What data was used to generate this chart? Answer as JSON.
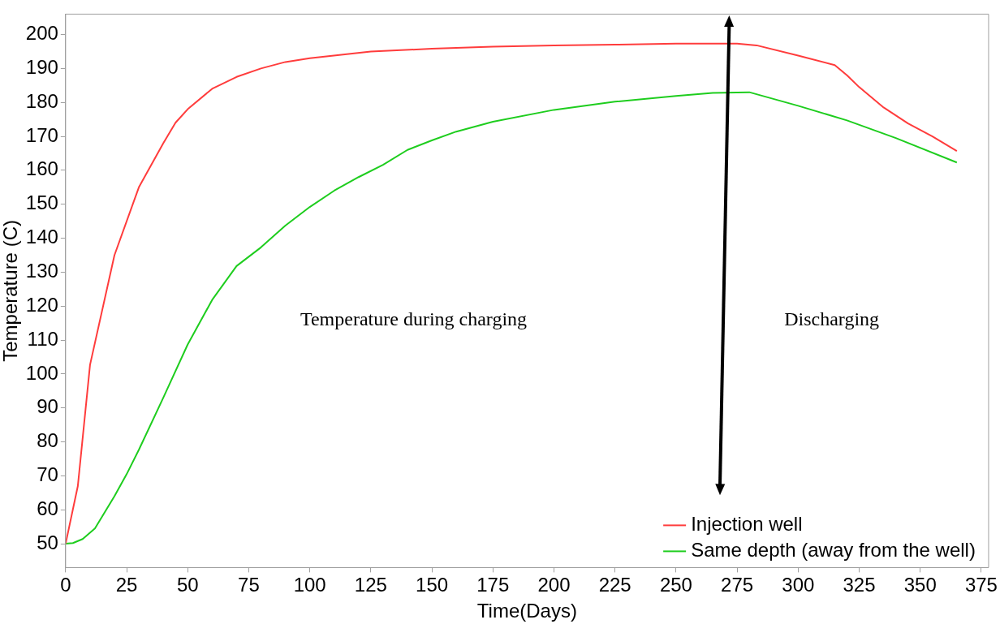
{
  "chart_data": {
    "type": "line",
    "xlabel": "Time(Days)",
    "ylabel": "Temperature (C)",
    "xlim": [
      0,
      378
    ],
    "ylim": [
      43,
      206
    ],
    "xticks": [
      0,
      25,
      50,
      75,
      100,
      125,
      150,
      175,
      200,
      225,
      250,
      275,
      300,
      325,
      350,
      375
    ],
    "yticks": [
      50,
      60,
      70,
      80,
      90,
      100,
      110,
      120,
      130,
      140,
      150,
      160,
      170,
      180,
      190,
      200
    ],
    "grid": false,
    "legend": "bottom right",
    "marker": "none",
    "line_style": "solid",
    "annotations": [
      "Temperature during charging",
      "Discharging"
    ],
    "series": [
      {
        "name": "Injection well",
        "color": "#ff3c3c",
        "x": [
          0,
          5,
          10,
          20,
          30,
          40,
          45,
          50,
          60,
          70,
          80,
          90,
          100,
          125,
          150,
          175,
          200,
          225,
          250,
          275,
          283,
          300,
          315,
          320,
          325,
          335,
          345,
          355,
          365
        ],
        "values": [
          50,
          67,
          102.7,
          135,
          155,
          168,
          174,
          178,
          184,
          187.5,
          190,
          191.9,
          193,
          195,
          195.8,
          196.4,
          196.8,
          197,
          197.3,
          197.3,
          196.8,
          193.8,
          191,
          188,
          184.5,
          178.5,
          173.8,
          170,
          165.7
        ]
      },
      {
        "name": "Same depth (away from the well)",
        "color": "#1ecd1e",
        "x": [
          0,
          3,
          7,
          12,
          20,
          25,
          30,
          40,
          50,
          60,
          70,
          80,
          90,
          100,
          110,
          120,
          130,
          140,
          150,
          160,
          175,
          200,
          225,
          250,
          265,
          280,
          300,
          320,
          340,
          365
        ],
        "values": [
          50,
          50.2,
          51.4,
          54.5,
          64,
          70.5,
          77.7,
          93,
          108.7,
          121.8,
          131.8,
          137.3,
          143.7,
          149.2,
          154,
          158,
          161.6,
          166,
          168.8,
          171.4,
          174.3,
          177.8,
          180.2,
          181.9,
          182.8,
          183,
          179,
          174.7,
          169.5,
          162.3
        ]
      }
    ]
  }
}
